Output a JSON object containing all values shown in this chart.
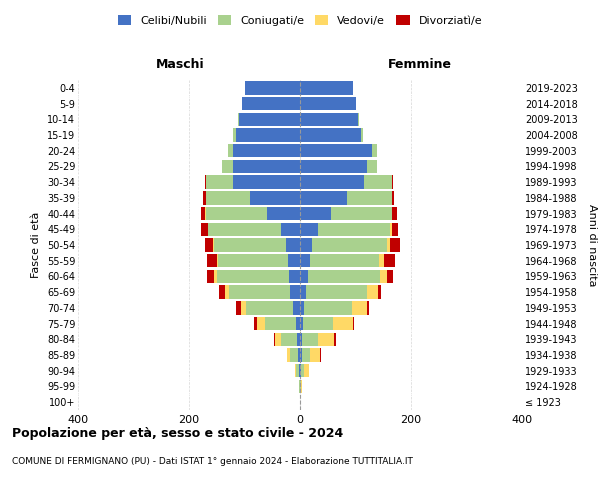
{
  "age_groups": [
    "100+",
    "95-99",
    "90-94",
    "85-89",
    "80-84",
    "75-79",
    "70-74",
    "65-69",
    "60-64",
    "55-59",
    "50-54",
    "45-49",
    "40-44",
    "35-39",
    "30-34",
    "25-29",
    "20-24",
    "15-19",
    "10-14",
    "5-9",
    "0-4"
  ],
  "birth_years": [
    "≤ 1923",
    "1924-1928",
    "1929-1933",
    "1934-1938",
    "1939-1943",
    "1944-1948",
    "1949-1953",
    "1954-1958",
    "1959-1963",
    "1964-1968",
    "1969-1973",
    "1974-1978",
    "1979-1983",
    "1984-1988",
    "1989-1993",
    "1994-1998",
    "1999-2003",
    "2004-2008",
    "2009-2013",
    "2014-2018",
    "2019-2023"
  ],
  "males": {
    "celibi": [
      0,
      0,
      2,
      3,
      5,
      8,
      12,
      18,
      20,
      22,
      25,
      35,
      60,
      90,
      120,
      120,
      120,
      115,
      110,
      105,
      100
    ],
    "coniugati": [
      0,
      2,
      5,
      15,
      30,
      55,
      85,
      110,
      130,
      125,
      130,
      130,
      110,
      80,
      50,
      20,
      10,
      5,
      2,
      0,
      0
    ],
    "vedovi": [
      0,
      0,
      2,
      5,
      10,
      15,
      10,
      8,
      5,
      3,
      2,
      1,
      1,
      0,
      0,
      0,
      0,
      0,
      0,
      0,
      0
    ],
    "divorziati": [
      0,
      0,
      0,
      0,
      2,
      5,
      8,
      10,
      12,
      18,
      15,
      12,
      8,
      5,
      2,
      1,
      0,
      0,
      0,
      0,
      0
    ]
  },
  "females": {
    "nubili": [
      0,
      0,
      2,
      3,
      4,
      5,
      8,
      10,
      15,
      18,
      22,
      32,
      55,
      85,
      115,
      120,
      130,
      110,
      105,
      100,
      95
    ],
    "coniugate": [
      0,
      2,
      6,
      15,
      28,
      55,
      85,
      110,
      130,
      125,
      135,
      130,
      110,
      80,
      50,
      18,
      8,
      4,
      2,
      0,
      0
    ],
    "vedove": [
      0,
      2,
      8,
      18,
      30,
      35,
      28,
      20,
      12,
      8,
      5,
      3,
      1,
      1,
      0,
      0,
      0,
      0,
      0,
      0,
      0
    ],
    "divorziate": [
      0,
      0,
      0,
      1,
      2,
      3,
      4,
      6,
      10,
      20,
      18,
      12,
      8,
      4,
      2,
      1,
      0,
      0,
      0,
      0,
      0
    ]
  },
  "colors": {
    "celibi": "#4472C4",
    "coniugati": "#A9D18E",
    "vedovi": "#FFD966",
    "divorziati": "#C00000"
  },
  "title": "Popolazione per età, sesso e stato civile - 2024",
  "subtitle": "COMUNE DI FERMIGNANO (PU) - Dati ISTAT 1° gennaio 2024 - Elaborazione TUTTITALIA.IT",
  "xlabel_left": "Maschi",
  "xlabel_right": "Femmine",
  "ylabel_left": "Fasce di età",
  "ylabel_right": "Anni di nascita",
  "xlim": 400,
  "legend_labels": [
    "Celibi/Nubili",
    "Coniugati/e",
    "Vedovi/e",
    "Divorziatì/e"
  ],
  "bg_color": "#ffffff",
  "grid_color": "#cccccc"
}
